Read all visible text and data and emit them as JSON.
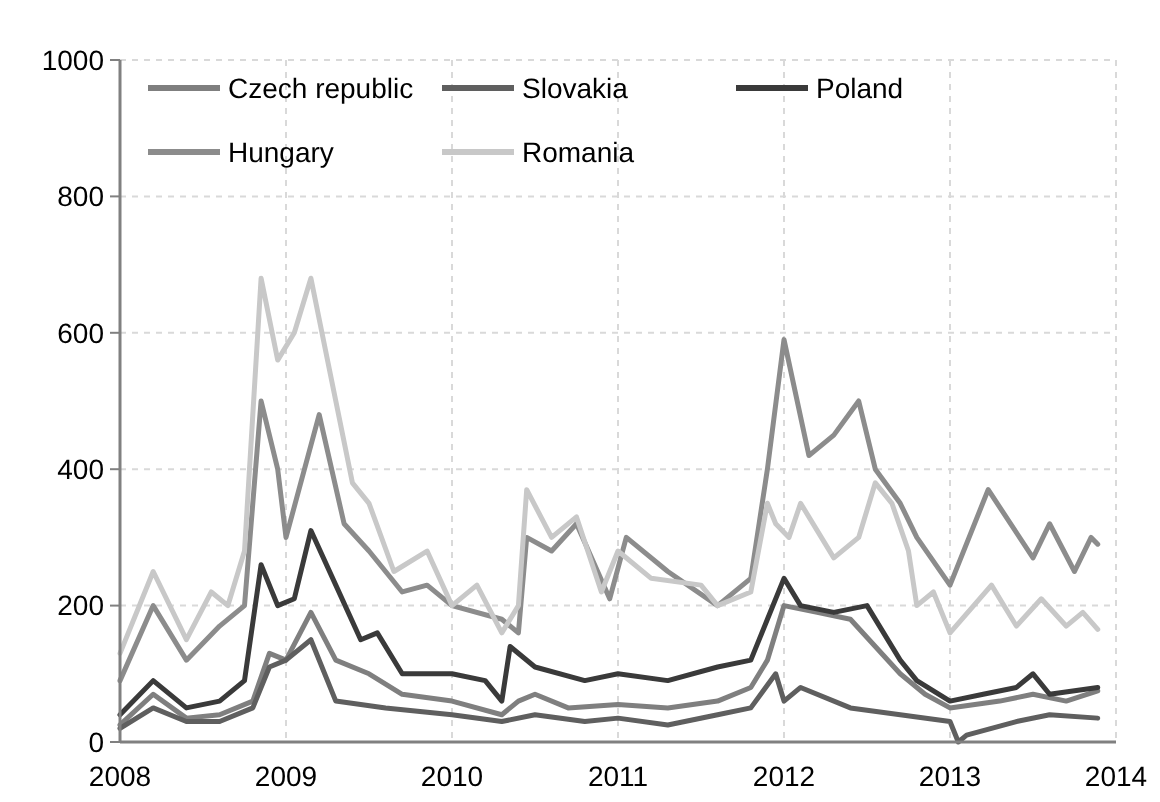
{
  "chart_data": {
    "type": "line",
    "xlim": [
      2008,
      2014
    ],
    "xticks": [
      2008,
      2009,
      2010,
      2011,
      2012,
      2013,
      2014
    ],
    "ylim": [
      0,
      1000
    ],
    "yticks": [
      0,
      200,
      400,
      600,
      800,
      1000
    ],
    "grid": true,
    "legend": "top",
    "line_style": "solid",
    "marker": "none",
    "series": [
      {
        "name": "Czech republic",
        "color": "#7f7f7f",
        "x": [
          2008,
          2008.2,
          2008.4,
          2008.6,
          2008.8,
          2008.9,
          2009,
          2009.15,
          2009.3,
          2009.5,
          2009.7,
          2010,
          2010.3,
          2010.4,
          2010.5,
          2010.7,
          2011,
          2011.3,
          2011.6,
          2011.8,
          2011.9,
          2012,
          2012.2,
          2012.4,
          2012.7,
          2012.85,
          2013,
          2013.3,
          2013.5,
          2013.7,
          2013.89
        ],
        "values": [
          25,
          70,
          35,
          40,
          60,
          130,
          120,
          190,
          120,
          100,
          70,
          60,
          40,
          60,
          70,
          50,
          55,
          50,
          60,
          80,
          120,
          200,
          190,
          180,
          100,
          70,
          50,
          60,
          70,
          60,
          75
        ]
      },
      {
        "name": "Slovakia",
        "color": "#5f5f5f",
        "x": [
          2008,
          2008.2,
          2008.4,
          2008.6,
          2008.8,
          2008.9,
          2009,
          2009.15,
          2009.3,
          2009.6,
          2010,
          2010.3,
          2010.5,
          2010.8,
          2011,
          2011.3,
          2011.6,
          2011.8,
          2011.95,
          2012,
          2012.1,
          2012.4,
          2012.7,
          2013,
          2013.05,
          2013.1,
          2013.4,
          2013.6,
          2013.89
        ],
        "values": [
          20,
          50,
          30,
          30,
          50,
          110,
          120,
          150,
          60,
          50,
          40,
          30,
          40,
          30,
          35,
          25,
          40,
          50,
          100,
          60,
          80,
          50,
          40,
          30,
          0,
          10,
          30,
          40,
          35
        ]
      },
      {
        "name": "Poland",
        "color": "#3a3a3a",
        "x": [
          2008,
          2008.2,
          2008.4,
          2008.6,
          2008.75,
          2008.85,
          2008.95,
          2009.05,
          2009.15,
          2009.3,
          2009.45,
          2009.55,
          2009.7,
          2010,
          2010.2,
          2010.3,
          2010.35,
          2010.5,
          2010.8,
          2011,
          2011.3,
          2011.6,
          2011.8,
          2011.9,
          2012,
          2012.1,
          2012.3,
          2012.5,
          2012.7,
          2012.8,
          2013,
          2013.2,
          2013.4,
          2013.5,
          2013.6,
          2013.89
        ],
        "values": [
          40,
          90,
          50,
          60,
          90,
          260,
          200,
          210,
          310,
          230,
          150,
          160,
          100,
          100,
          90,
          60,
          140,
          110,
          90,
          100,
          90,
          110,
          120,
          180,
          240,
          200,
          190,
          200,
          120,
          90,
          60,
          70,
          80,
          100,
          70,
          80
        ]
      },
      {
        "name": "Hungary",
        "color": "#8c8c8c",
        "x": [
          2008,
          2008.2,
          2008.4,
          2008.6,
          2008.75,
          2008.85,
          2008.95,
          2009,
          2009.2,
          2009.35,
          2009.5,
          2009.7,
          2009.85,
          2010,
          2010.3,
          2010.4,
          2010.45,
          2010.6,
          2010.75,
          2010.95,
          2011.05,
          2011.3,
          2011.6,
          2011.8,
          2011.9,
          2012,
          2012.15,
          2012.3,
          2012.45,
          2012.55,
          2012.7,
          2012.8,
          2013,
          2013.23,
          2013.5,
          2013.6,
          2013.75,
          2013.85,
          2013.89
        ],
        "values": [
          90,
          200,
          120,
          170,
          200,
          500,
          400,
          300,
          480,
          320,
          280,
          220,
          230,
          200,
          180,
          160,
          300,
          280,
          320,
          210,
          300,
          250,
          200,
          240,
          400,
          590,
          420,
          450,
          500,
          400,
          350,
          300,
          230,
          370,
          270,
          320,
          250,
          300,
          290
        ]
      },
      {
        "name": "Romania",
        "color": "#c8c8c8",
        "x": [
          2008,
          2008.2,
          2008.4,
          2008.55,
          2008.65,
          2008.75,
          2008.85,
          2008.95,
          2009.05,
          2009.15,
          2009.3,
          2009.4,
          2009.5,
          2009.65,
          2009.85,
          2010,
          2010.15,
          2010.3,
          2010.4,
          2010.45,
          2010.6,
          2010.75,
          2010.9,
          2011,
          2011.2,
          2011.5,
          2011.6,
          2011.8,
          2011.9,
          2011.95,
          2012.03,
          2012.1,
          2012.3,
          2012.45,
          2012.55,
          2012.65,
          2012.75,
          2012.8,
          2012.9,
          2013,
          2013.25,
          2013.4,
          2013.55,
          2013.7,
          2013.8,
          2013.89
        ],
        "values": [
          130,
          250,
          150,
          220,
          200,
          280,
          680,
          560,
          600,
          680,
          500,
          380,
          350,
          250,
          280,
          200,
          230,
          160,
          200,
          370,
          300,
          330,
          220,
          280,
          240,
          230,
          200,
          220,
          350,
          320,
          300,
          350,
          270,
          300,
          380,
          350,
          280,
          200,
          220,
          160,
          230,
          170,
          210,
          170,
          190,
          165
        ]
      }
    ]
  }
}
